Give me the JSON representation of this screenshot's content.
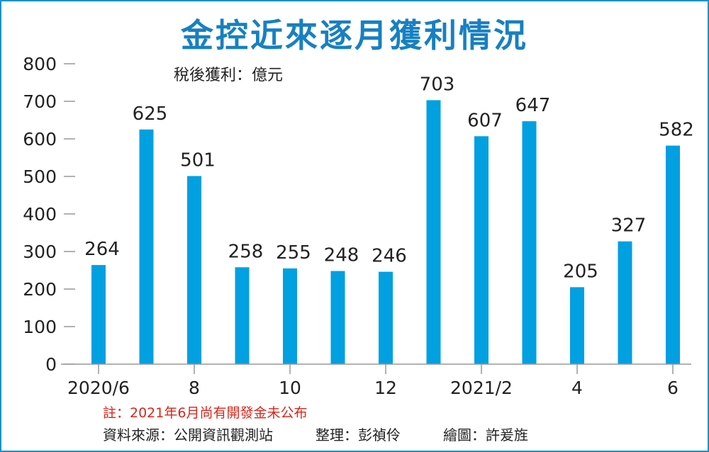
{
  "title": "金控近來逐月獲利情況",
  "unit_label": "稅後獲利：億元",
  "note": "註：2021年6月尚有開發金未公布",
  "source": "資料來源：公開資訊觀測站",
  "editor": "整理：彭禎伶",
  "illustrator": "繪圖：許爰旌",
  "colors": {
    "bar": "#00a0e1",
    "title": "#1780c2",
    "frame": "#1a93c9",
    "note": "#d9261c"
  },
  "chart_data": {
    "type": "bar",
    "title": "金控近來逐月獲利情況",
    "ylabel": "稅後獲利：億元",
    "xlabel": "",
    "ylim": [
      0,
      800
    ],
    "yticks": [
      0,
      100,
      200,
      300,
      400,
      500,
      600,
      700,
      800
    ],
    "grid": false,
    "categories": [
      "2020/6",
      "2020/7",
      "2020/8",
      "2020/9",
      "2020/10",
      "2020/11",
      "2020/12",
      "2021/1",
      "2021/2",
      "2021/3",
      "2021/4",
      "2021/5",
      "2021/6"
    ],
    "tick_labels": [
      "2020/6",
      "",
      "8",
      "",
      "10",
      "",
      "12",
      "",
      "2021/2",
      "",
      "4",
      "",
      "6"
    ],
    "values": [
      264,
      625,
      501,
      258,
      255,
      248,
      246,
      703,
      607,
      647,
      205,
      327,
      582
    ]
  }
}
